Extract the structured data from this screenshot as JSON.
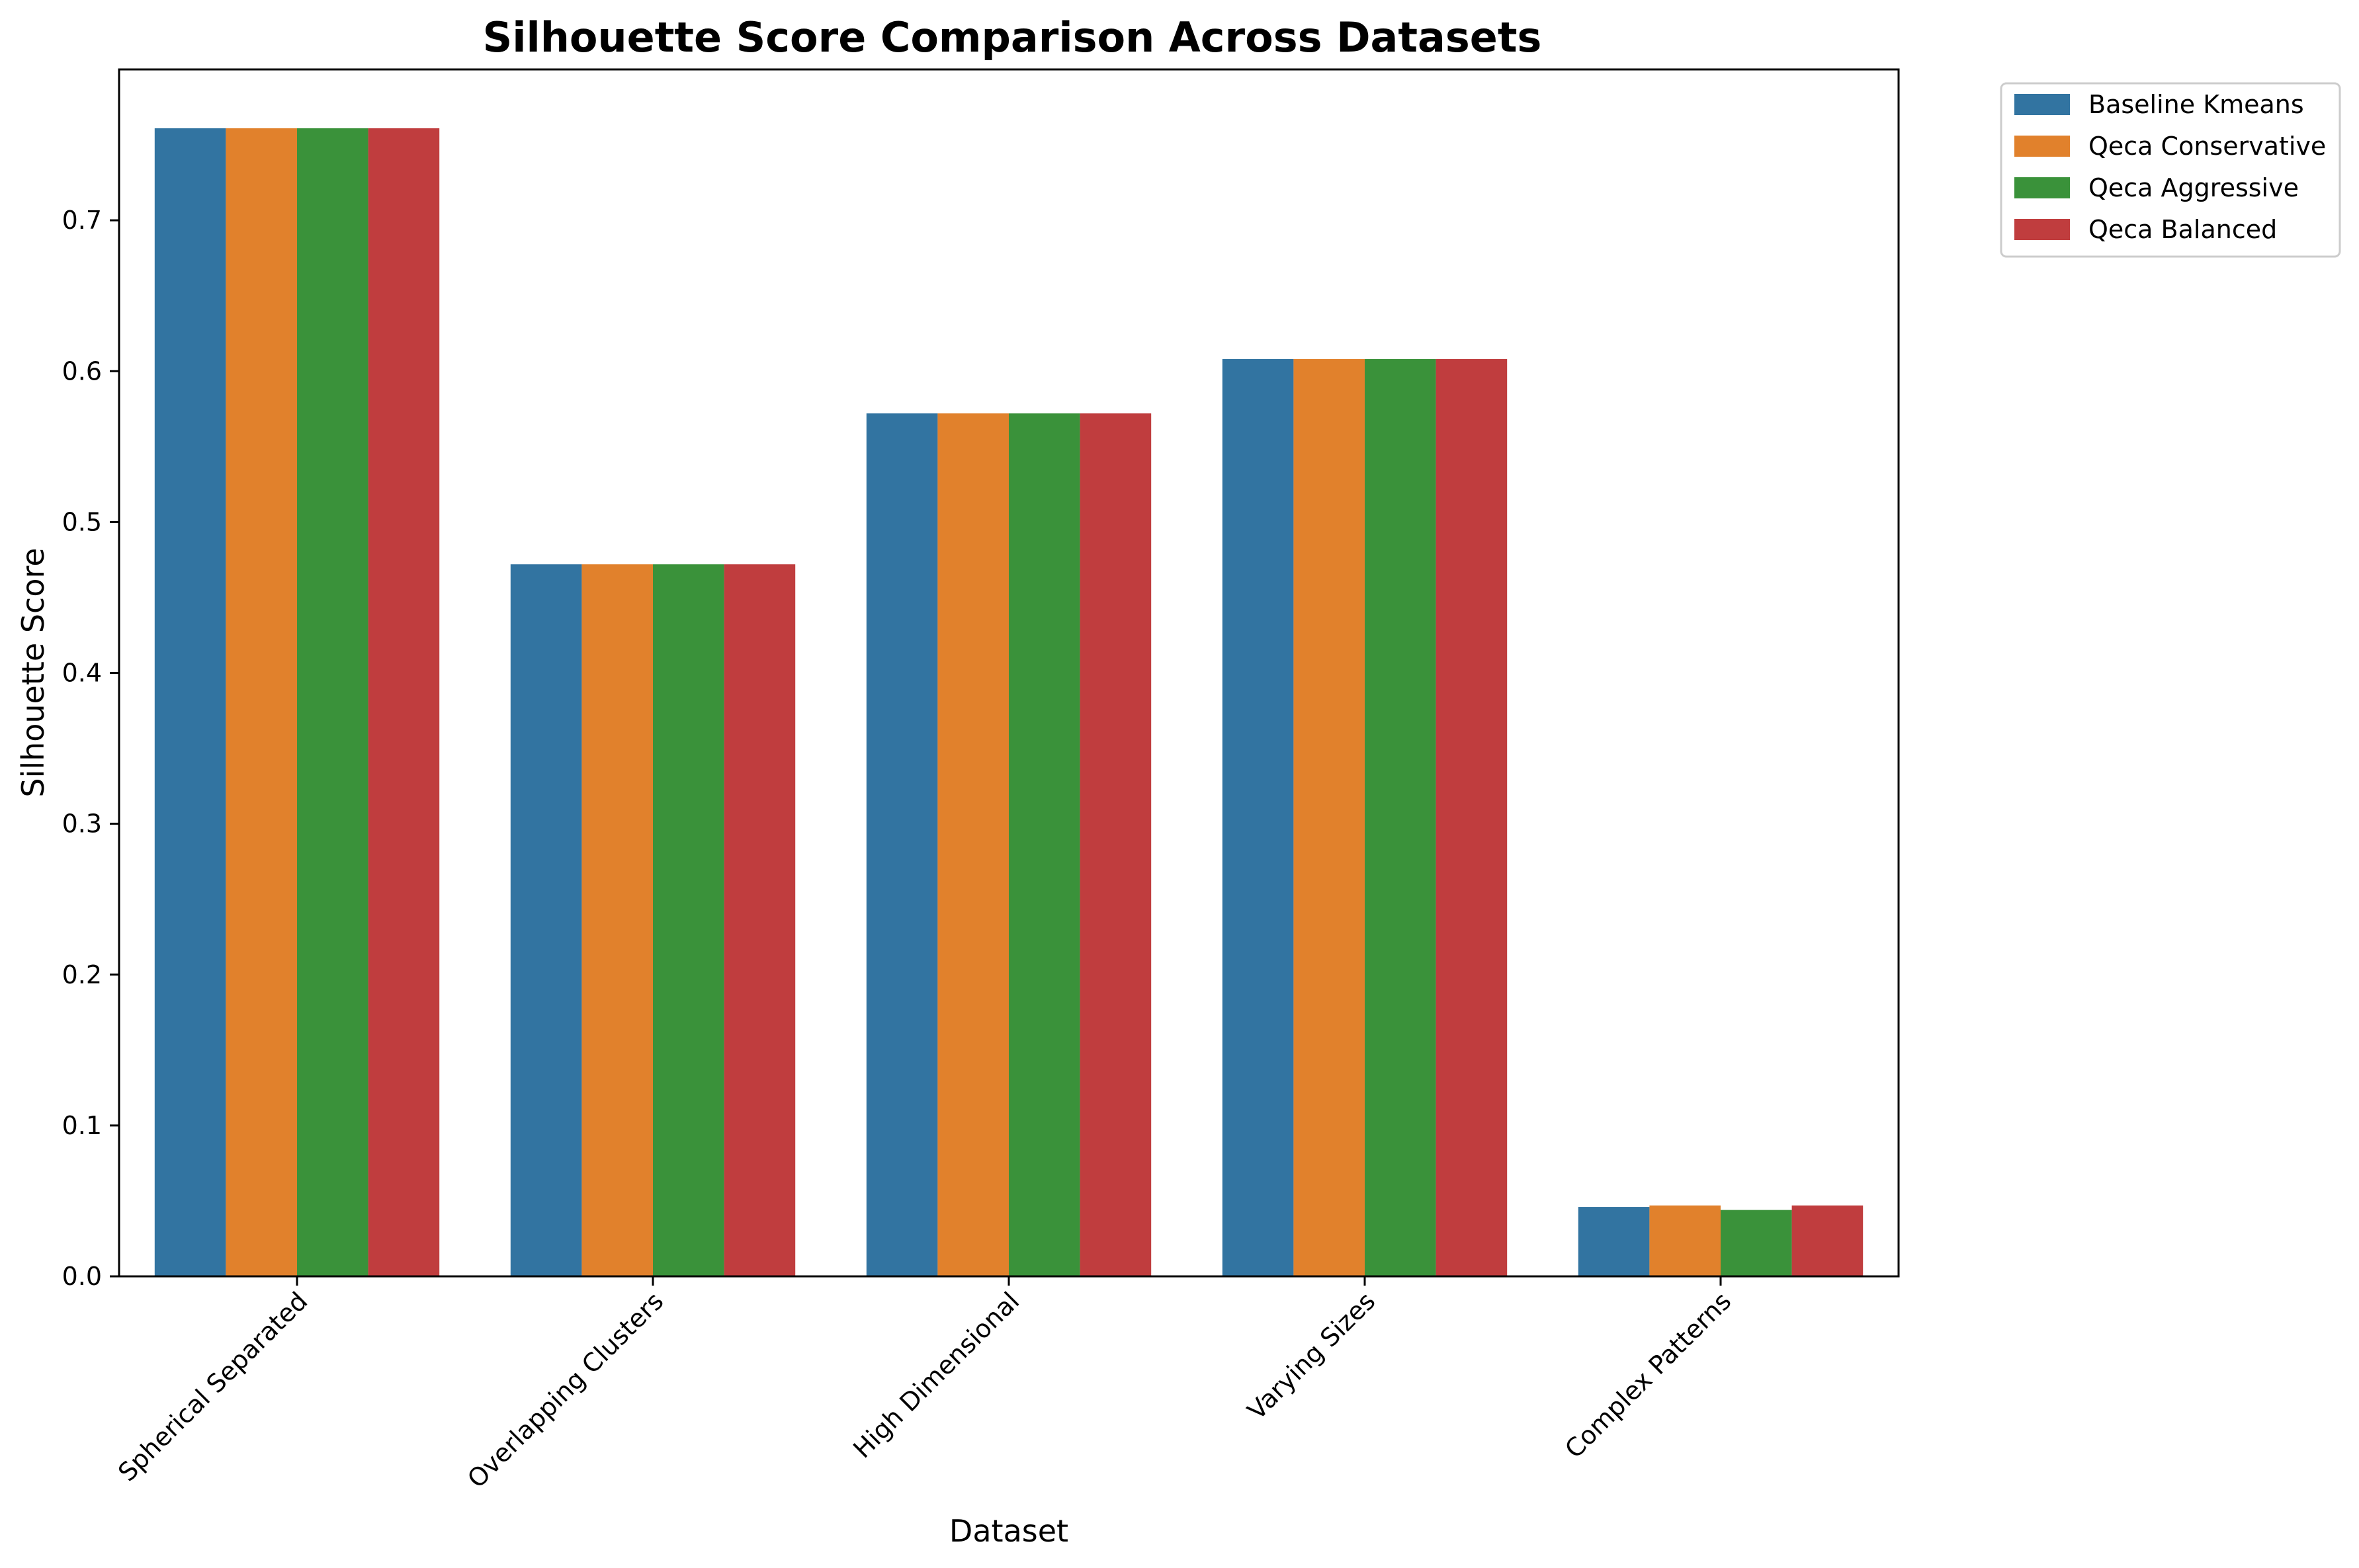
{
  "chart_data": {
    "type": "bar",
    "title": "Silhouette Score Comparison Across Datasets",
    "xlabel": "Dataset",
    "ylabel": "Silhouette Score",
    "categories": [
      "Spherical Separated",
      "Overlapping Clusters",
      "High Dimensional",
      "Varying Sizes",
      "Complex Patterns"
    ],
    "series": [
      {
        "name": "Baseline Kmeans",
        "color": "#3274a1",
        "values": [
          0.761,
          0.472,
          0.572,
          0.608,
          0.046
        ]
      },
      {
        "name": "Qeca Conservative",
        "color": "#e1812c",
        "values": [
          0.761,
          0.472,
          0.572,
          0.608,
          0.047
        ]
      },
      {
        "name": "Qeca Aggressive",
        "color": "#3a923a",
        "values": [
          0.761,
          0.472,
          0.572,
          0.608,
          0.044
        ]
      },
      {
        "name": "Qeca Balanced",
        "color": "#c03d3e",
        "values": [
          0.761,
          0.472,
          0.572,
          0.608,
          0.047
        ]
      }
    ],
    "ylim": [
      0,
      0.8
    ],
    "yticks": [
      "0.0",
      "0.1",
      "0.2",
      "0.3",
      "0.4",
      "0.5",
      "0.6",
      "0.7"
    ],
    "grid": false,
    "legend_position": "outside-top-right"
  }
}
